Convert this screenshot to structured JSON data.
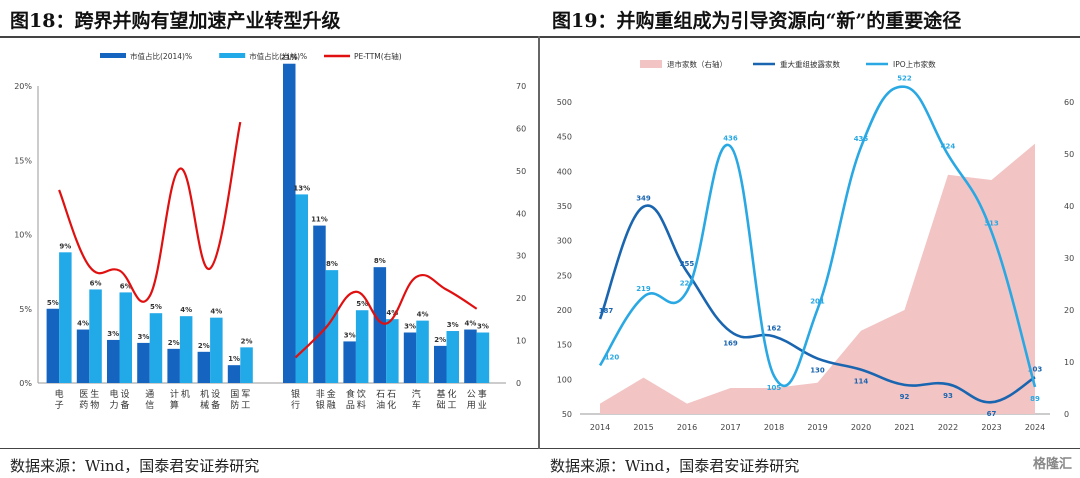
{
  "left_panel": {
    "title": "图18：跨界并购有望加速产业转型升级",
    "source": "数据来源：Wind，国泰君安证券研究"
  },
  "right_panel": {
    "title": "图19：并购重组成为引导资源向“新”的重要途径",
    "source": "数据来源：Wind，国泰君安证券研究"
  },
  "watermark": "格隆汇",
  "chart_data": [
    {
      "type": "bar",
      "categories": [
        "电子",
        "医药生物",
        "电力设备",
        "通信",
        "计算机",
        "机械设备",
        "国防军工",
        "银行",
        "非银金融",
        "食品饮料",
        "石油石化",
        "汽车",
        "基础化工",
        "公用事业"
      ],
      "category_groups": [
        7,
        7
      ],
      "series": [
        {
          "name": "市值占比(2014)%",
          "type": "bar",
          "axis": "left",
          "color": "#1565c0",
          "values": [
            5,
            3.6,
            2.9,
            2.7,
            2.3,
            2.1,
            1.2,
            21.5,
            10.6,
            2.8,
            7.8,
            3.4,
            2.5,
            3.6
          ],
          "labels": [
            "5%",
            "4%",
            "3%",
            "3%",
            "2%",
            "2%",
            "1%",
            "21%",
            "11%",
            "3%",
            "8%",
            "3%",
            "2%",
            "4%"
          ]
        },
        {
          "name": "市值占比(当前)%",
          "type": "bar",
          "axis": "left",
          "color": "#21a9e8",
          "values": [
            8.8,
            6.3,
            6.1,
            4.7,
            4.5,
            4.4,
            2.4,
            12.7,
            7.6,
            4.9,
            4.3,
            4.2,
            3.5,
            3.4
          ],
          "labels": [
            "9%",
            "6%",
            "6%",
            "5%",
            "4%",
            "4%",
            "2%",
            "13%",
            "8%",
            "5%",
            "4%",
            "4%",
            "3%",
            "3%"
          ]
        },
        {
          "name": "PE-TTM(右轴)",
          "type": "line",
          "axis": "right",
          "color": "#e01010",
          "groups": [
            [
              45.5,
              27.5,
              26.5,
              20.5,
              50.5,
              27,
              61.5
            ],
            [
              6,
              13,
              21.5,
              14,
              25,
              22,
              17.5
            ]
          ]
        }
      ],
      "yleft_ticks": [
        "0%",
        "5%",
        "10%",
        "15%",
        "20%"
      ],
      "yleft_lim": [
        0,
        20
      ],
      "yright_ticks": [
        "0",
        "10",
        "20",
        "30",
        "40",
        "50",
        "60",
        "70"
      ],
      "yright_lim": [
        0,
        70
      ],
      "legend_position": "top"
    },
    {
      "type": "line",
      "x": [
        "2014",
        "2015",
        "2016",
        "2017",
        "2018",
        "2019",
        "2020",
        "2021",
        "2022",
        "2023",
        "2024"
      ],
      "series": [
        {
          "name": "退市家数（右轴）",
          "type": "area",
          "axis": "right",
          "color": "#f2c4c4",
          "values": [
            2,
            7,
            2,
            5,
            5,
            6,
            16,
            20,
            46,
            45,
            52
          ]
        },
        {
          "name": "重大重组披露家数",
          "type": "line",
          "axis": "left",
          "color": "#1a65b0",
          "values": [
            187,
            349,
            255,
            169,
            162,
            130,
            114,
            92,
            93,
            67,
            103
          ],
          "labels": [
            "187",
            "349",
            "255",
            "169",
            "162",
            "130",
            "114",
            "92",
            "93",
            "67",
            "103"
          ]
        },
        {
          "name": "IPO上市家数",
          "type": "line",
          "axis": "left",
          "color": "#29a8e3",
          "values": [
            120,
            219,
            227,
            436,
            105,
            201,
            435,
            522,
            424,
            313,
            89
          ],
          "labels": [
            "120",
            "219",
            "227",
            "436",
            "105",
            "201",
            "435",
            "522",
            "424",
            "313",
            "89"
          ]
        }
      ],
      "yleft_ticks": [
        "50",
        "100",
        "150",
        "200",
        "250",
        "300",
        "350",
        "400",
        "450",
        "500"
      ],
      "yleft_lim": [
        50,
        500
      ],
      "yright_ticks": [
        "0",
        "10",
        "20",
        "30",
        "40",
        "50",
        "60"
      ],
      "yright_lim": [
        0,
        60
      ],
      "legend_position": "top"
    }
  ]
}
